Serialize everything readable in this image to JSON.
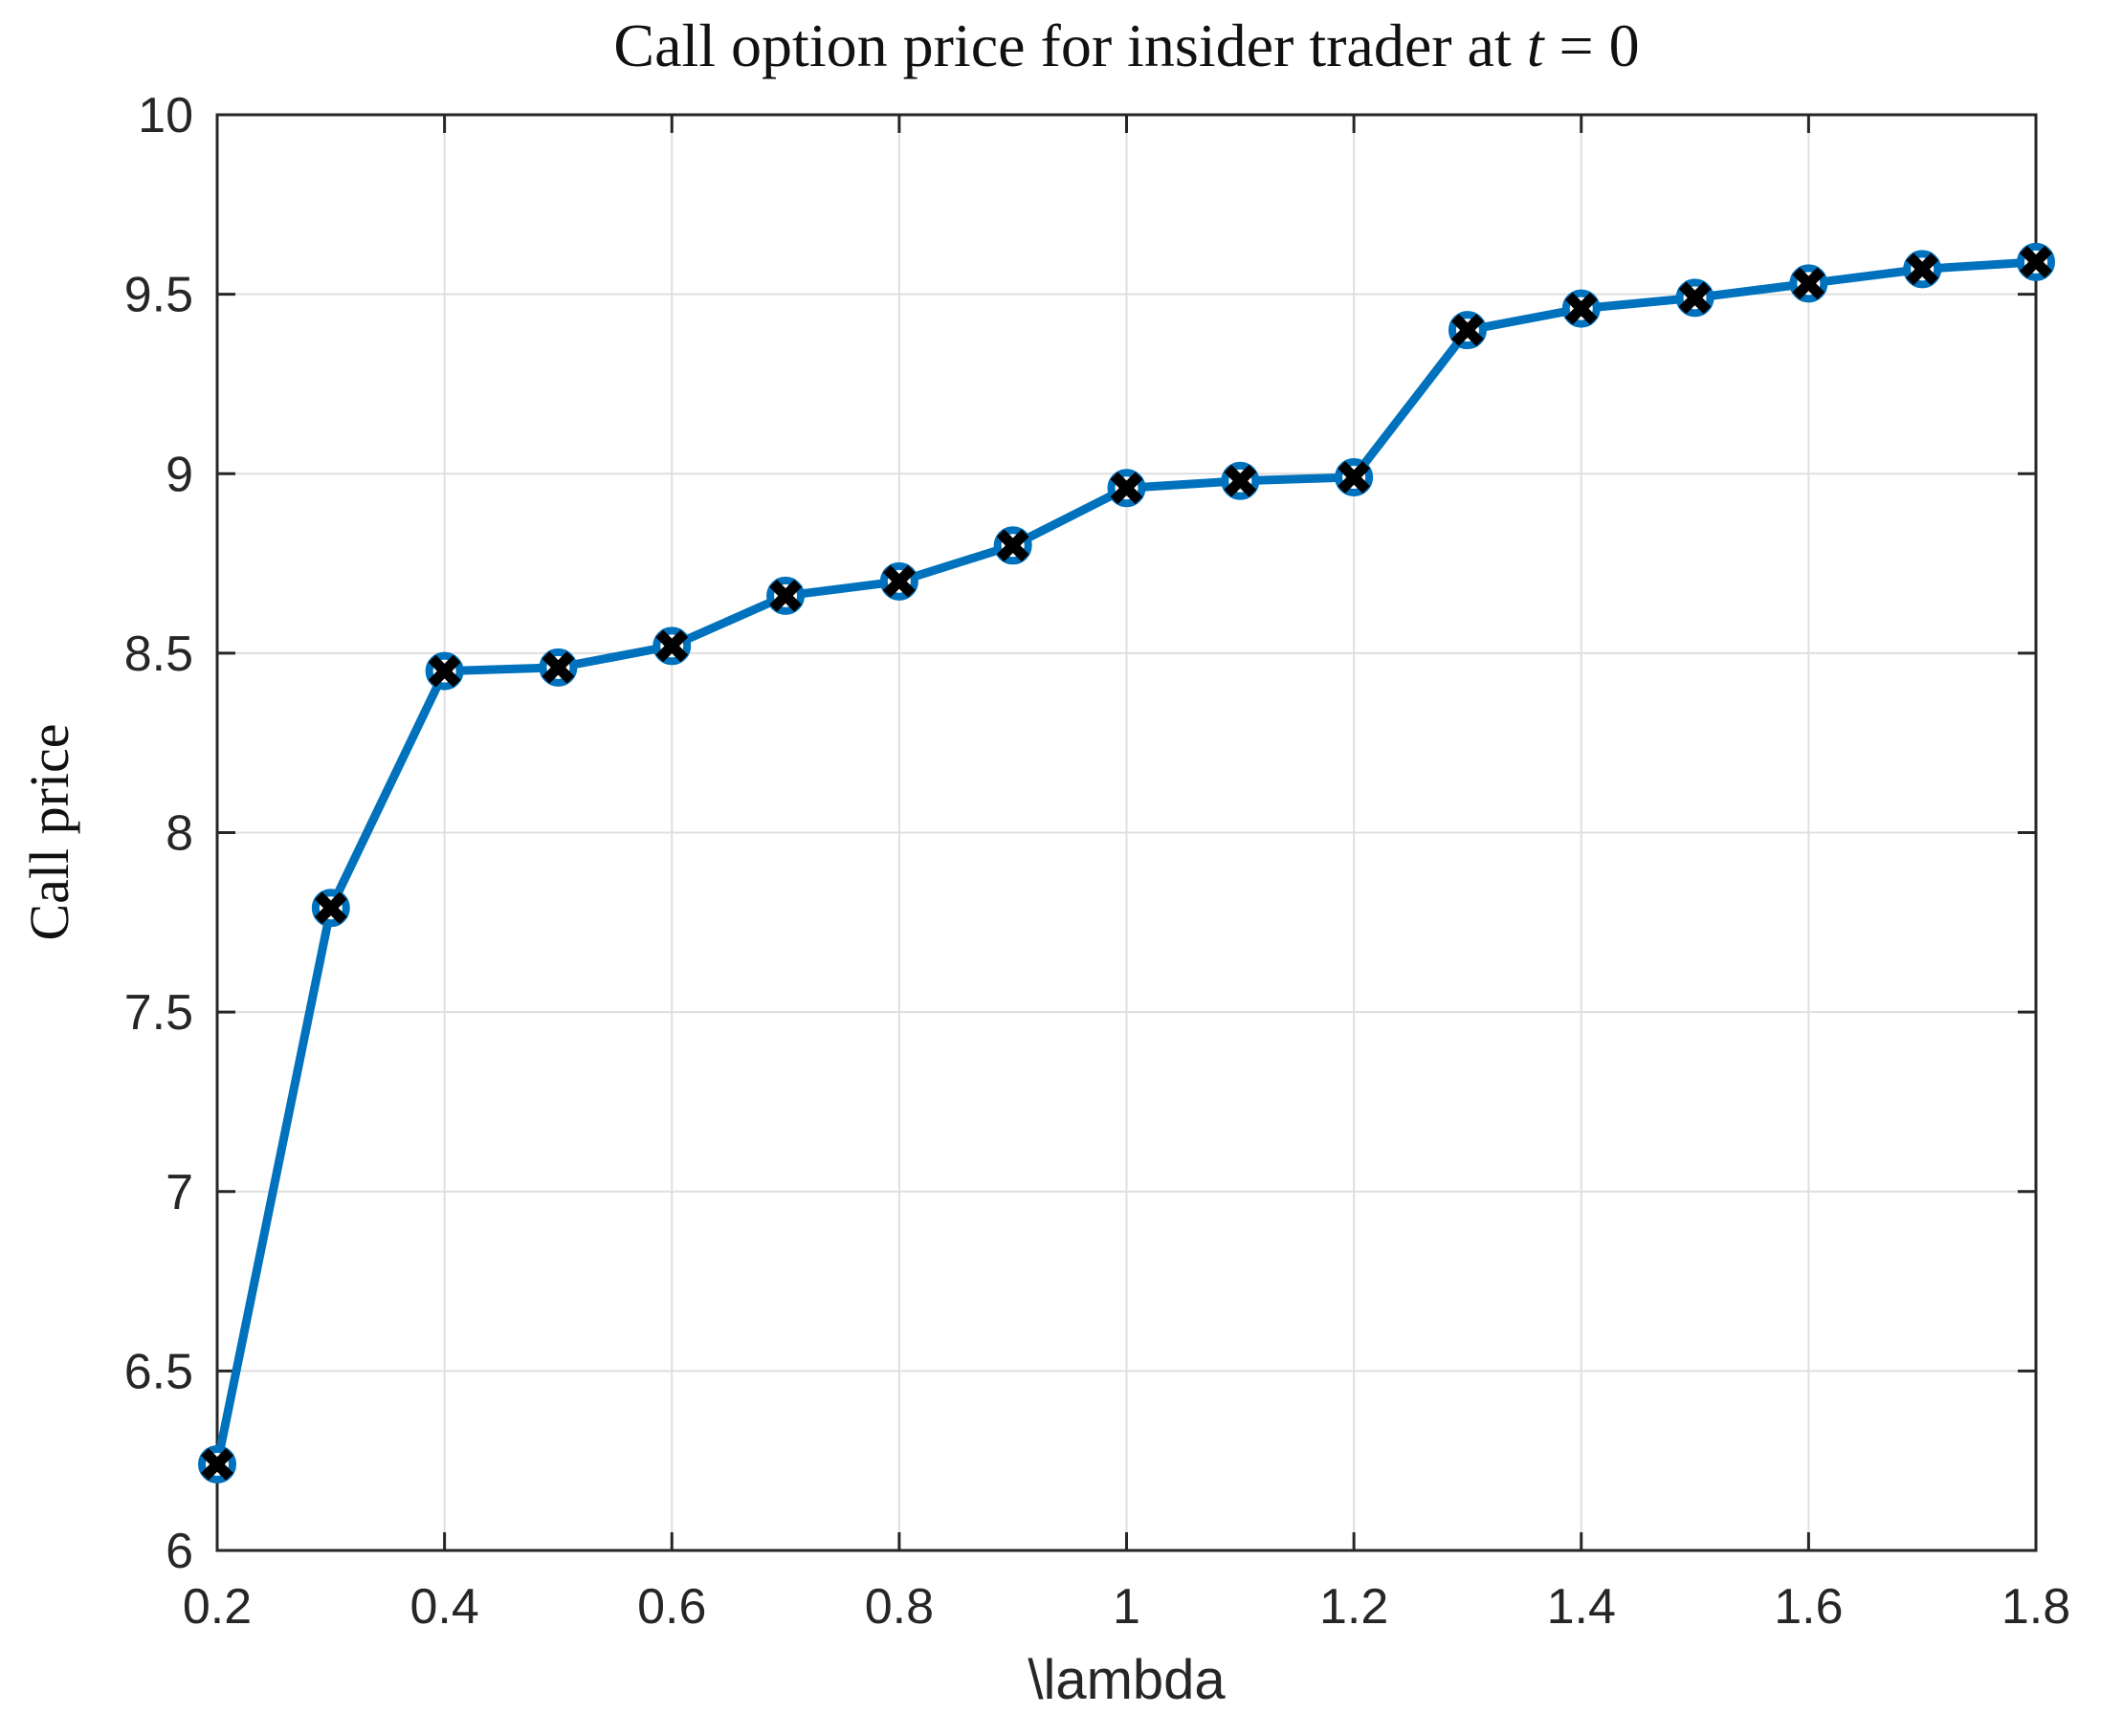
{
  "chart_data": {
    "type": "line",
    "title": "Call option price for insider trader at t = 0",
    "title_parts": {
      "prefix": "Call option price for insider trader at ",
      "math_var": "t",
      "math_rest": " = 0"
    },
    "xlabel": "\\lambda",
    "ylabel": "Call price",
    "x": [
      0.2,
      0.3,
      0.4,
      0.5,
      0.6,
      0.7,
      0.8,
      0.9,
      1.0,
      1.1,
      1.2,
      1.3,
      1.4,
      1.5,
      1.6,
      1.7,
      1.8
    ],
    "y": [
      6.24,
      7.79,
      8.45,
      8.46,
      8.52,
      8.66,
      8.7,
      8.8,
      8.96,
      8.98,
      8.99,
      9.4,
      9.46,
      9.49,
      9.53,
      9.57,
      9.59
    ],
    "xlim": [
      0.2,
      1.8
    ],
    "ylim": [
      6,
      10
    ],
    "x_ticks": [
      0.2,
      0.4,
      0.6,
      0.8,
      1,
      1.2,
      1.4,
      1.6,
      1.8
    ],
    "x_tick_labels": [
      "0.2",
      "0.4",
      "0.6",
      "0.8",
      "1",
      "1.2",
      "1.4",
      "1.6",
      "1.8"
    ],
    "y_ticks": [
      6,
      6.5,
      7,
      7.5,
      8,
      8.5,
      9,
      9.5,
      10
    ],
    "y_tick_labels": [
      "6",
      "6.5",
      "7",
      "7.5",
      "8",
      "8.5",
      "9",
      "9.5",
      "10"
    ],
    "grid": true,
    "legend": "none",
    "marker_style": "circle-with-x",
    "colors": {
      "line": "#0072BD",
      "marker_edge": "#0072BD",
      "marker_face": "#ffffff",
      "marker_x": "#000000",
      "grid": "#dfdfdf",
      "axis": "#262626",
      "tick_label": "#262626",
      "background": "#ffffff"
    }
  }
}
